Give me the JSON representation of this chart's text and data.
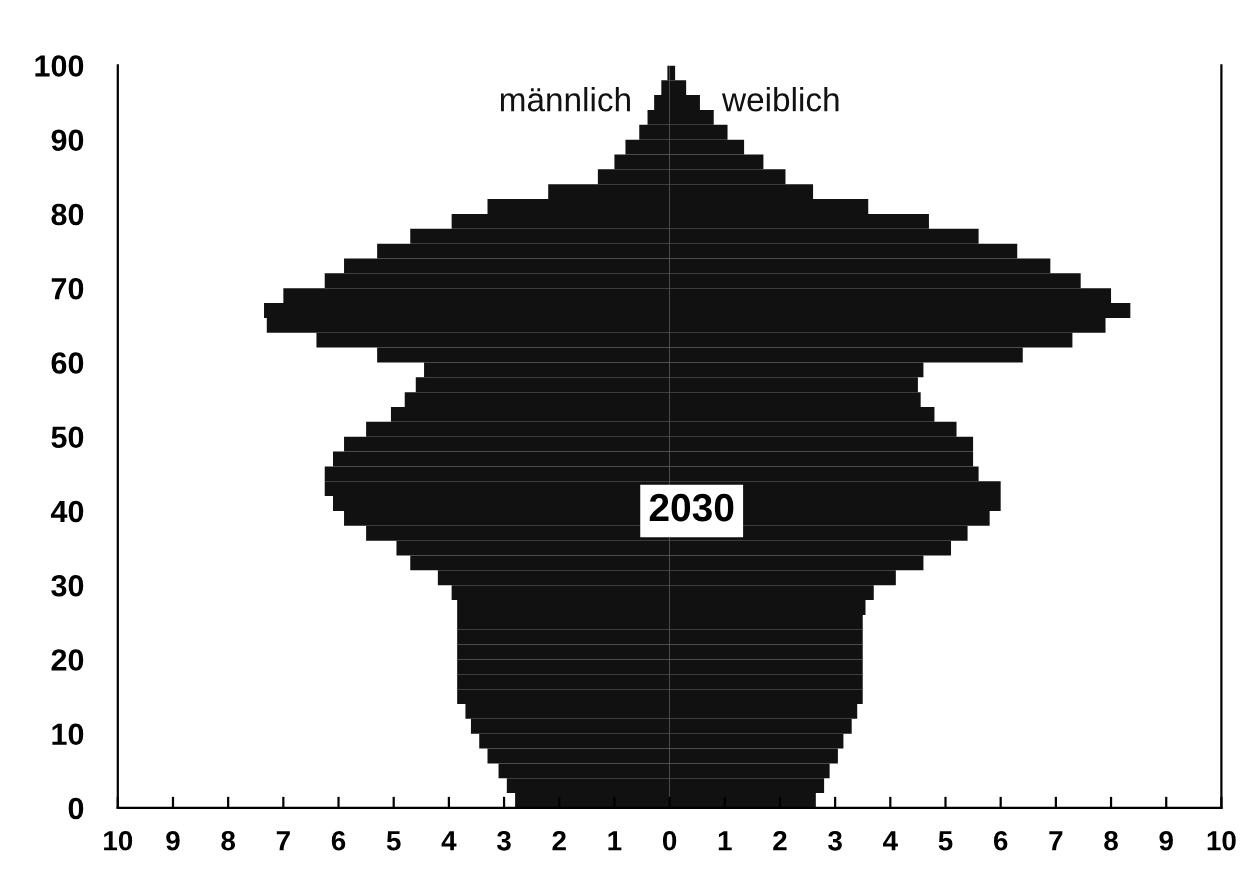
{
  "chart_data": {
    "type": "bar",
    "orientation": "horizontal",
    "stacked": true,
    "x": [
      1,
      3,
      5,
      7,
      9,
      11,
      13,
      15,
      17,
      19,
      21,
      23,
      25,
      27,
      29,
      31,
      33,
      35,
      37,
      39,
      41,
      43,
      45,
      47,
      49,
      51,
      53,
      55,
      57,
      59,
      61,
      63,
      65,
      67,
      69,
      71,
      73,
      75,
      77,
      79,
      81,
      83,
      85,
      87,
      89,
      91,
      93,
      95,
      97,
      99
    ],
    "series": [
      {
        "name": "männlich",
        "color": "#111111",
        "values": [
          -2.8,
          -2.95,
          -3.1,
          -3.3,
          -3.45,
          -3.6,
          -3.7,
          -3.85,
          -3.85,
          -3.85,
          -3.85,
          -3.85,
          -3.85,
          -3.85,
          -3.95,
          -4.2,
          -4.7,
          -4.95,
          -5.5,
          -5.9,
          -6.1,
          -6.25,
          -6.25,
          -6.1,
          -5.9,
          -5.5,
          -5.05,
          -4.8,
          -4.6,
          -4.45,
          -5.3,
          -6.4,
          -7.3,
          -7.35,
          -7.0,
          -6.25,
          -5.9,
          -5.3,
          -4.7,
          -3.95,
          -3.3,
          -2.2,
          -1.3,
          -1.0,
          -0.8,
          -0.55,
          -0.4,
          -0.28,
          -0.15,
          -0.04
        ]
      },
      {
        "name": "weiblich",
        "color": "#111111",
        "values": [
          2.65,
          2.8,
          2.9,
          3.05,
          3.15,
          3.3,
          3.4,
          3.5,
          3.5,
          3.5,
          3.5,
          3.5,
          3.5,
          3.55,
          3.7,
          4.1,
          4.6,
          5.1,
          5.4,
          5.8,
          6.0,
          6.0,
          5.6,
          5.5,
          5.5,
          5.2,
          4.8,
          4.55,
          4.5,
          4.6,
          6.4,
          7.3,
          7.9,
          8.35,
          8.0,
          7.45,
          6.9,
          6.3,
          5.6,
          4.7,
          3.6,
          2.6,
          2.1,
          1.7,
          1.35,
          1.05,
          0.8,
          0.55,
          0.3,
          0.1
        ]
      }
    ],
    "xlim": [
      -10,
      10
    ],
    "xticks": [
      {
        "value": -10,
        "label": "10"
      },
      {
        "value": -9,
        "label": "9"
      },
      {
        "value": -8,
        "label": "8"
      },
      {
        "value": -7,
        "label": "7"
      },
      {
        "value": -6,
        "label": "6"
      },
      {
        "value": -5,
        "label": "5"
      },
      {
        "value": -4,
        "label": "4"
      },
      {
        "value": -3,
        "label": "3"
      },
      {
        "value": -2,
        "label": "2"
      },
      {
        "value": -1,
        "label": "1"
      },
      0,
      1,
      2,
      3,
      4,
      5,
      6,
      7,
      8,
      9,
      10
    ],
    "ylim": [
      0,
      100
    ],
    "yticks": [
      0,
      10,
      20,
      30,
      40,
      50,
      60,
      70,
      80,
      90,
      100
    ],
    "annotations": [
      "2030"
    ],
    "grid": false,
    "legend": false
  }
}
